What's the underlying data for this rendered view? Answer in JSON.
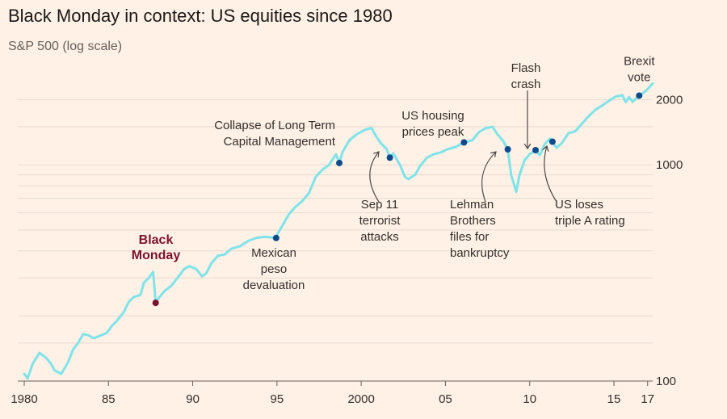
{
  "chart_data": {
    "type": "line",
    "title": "Black Monday in context: US equities since 1980",
    "subtitle": "S&P 500 (log scale)",
    "xlim": [
      1980,
      2017.3
    ],
    "ylim": [
      100,
      2450
    ],
    "yscale": "log",
    "grid": true,
    "x_ticks": [
      {
        "value": 1980,
        "label": "1980"
      },
      {
        "value": 1985,
        "label": "85"
      },
      {
        "value": 1990,
        "label": "90"
      },
      {
        "value": 1995,
        "label": "95"
      },
      {
        "value": 2000,
        "label": "2000"
      },
      {
        "value": 2005,
        "label": "05"
      },
      {
        "value": 2010,
        "label": "10"
      },
      {
        "value": 2015,
        "label": "15"
      },
      {
        "value": 2017,
        "label": "17"
      }
    ],
    "y_ticks": [
      {
        "value": 100,
        "label": "100"
      },
      {
        "value": 1000,
        "label": "1000"
      },
      {
        "value": 2000,
        "label": "2000"
      }
    ],
    "y_gridlines": [
      100,
      150,
      200,
      300,
      400,
      500,
      600,
      700,
      800,
      900,
      1000,
      1500,
      2000
    ],
    "series": [
      {
        "x": [
          1980.0,
          1980.2,
          1980.5,
          1980.9,
          1981.3,
          1981.6,
          1981.8,
          1982.2,
          1982.6,
          1982.9,
          1983.2,
          1983.5,
          1983.8,
          1984.1,
          1984.5,
          1984.9,
          1985.2,
          1985.5,
          1985.9,
          1986.2,
          1986.5,
          1986.9,
          1987.1,
          1987.4,
          1987.65,
          1987.8,
          1987.95,
          1988.3,
          1988.7,
          1989.1,
          1989.5,
          1989.8,
          1990.2,
          1990.55,
          1990.8,
          1991.1,
          1991.5,
          1991.9,
          1992.3,
          1992.8,
          1993.3,
          1993.8,
          1994.3,
          1994.9,
          1995.3,
          1995.7,
          1996.1,
          1996.5,
          1996.9,
          1997.3,
          1997.7,
          1998.1,
          1998.5,
          1998.7,
          1998.9,
          1999.3,
          1999.7,
          2000.2,
          2000.6,
          2000.9,
          2001.2,
          2001.5,
          2001.7,
          2001.9,
          2002.3,
          2002.6,
          2002.8,
          2003.2,
          2003.5,
          2003.9,
          2004.3,
          2004.7,
          2005.1,
          2005.6,
          2006.1,
          2006.6,
          2007.0,
          2007.4,
          2007.8,
          2008.1,
          2008.4,
          2008.7,
          2008.9,
          2009.2,
          2009.4,
          2009.7,
          2010.0,
          2010.35,
          2010.6,
          2010.9,
          2011.2,
          2011.35,
          2011.6,
          2011.9,
          2012.3,
          2012.7,
          2013.1,
          2013.5,
          2013.9,
          2014.3,
          2014.7,
          2015.1,
          2015.5,
          2015.7,
          2015.9,
          2016.1,
          2016.5,
          2016.9,
          2017.3
        ],
        "y": [
          108,
          103,
          120,
          135,
          128,
          120,
          112,
          108,
          122,
          140,
          150,
          165,
          163,
          158,
          162,
          167,
          180,
          190,
          208,
          232,
          245,
          250,
          285,
          300,
          320,
          230,
          240,
          260,
          275,
          300,
          330,
          340,
          330,
          305,
          315,
          350,
          380,
          385,
          410,
          420,
          445,
          460,
          465,
          459,
          520,
          590,
          640,
          680,
          740,
          880,
          950,
          1000,
          1120,
          1020,
          1150,
          1300,
          1380,
          1450,
          1480,
          1350,
          1250,
          1190,
          1080,
          1130,
          1000,
          880,
          860,
          900,
          990,
          1080,
          1120,
          1140,
          1180,
          1210,
          1270,
          1300,
          1420,
          1480,
          1500,
          1380,
          1300,
          1180,
          900,
          750,
          900,
          1050,
          1120,
          1170,
          1110,
          1250,
          1320,
          1280,
          1200,
          1260,
          1400,
          1430,
          1550,
          1680,
          1800,
          1880,
          1980,
          2070,
          2100,
          1950,
          2060,
          1960,
          2090,
          2200,
          2380
        ]
      }
    ],
    "events": [
      {
        "x": 1987.8,
        "y": 230,
        "label": [
          "Black",
          "Monday"
        ],
        "highlight": true
      },
      {
        "x": 1994.95,
        "y": 459,
        "label": [
          "Mexican",
          "peso",
          "devaluation"
        ]
      },
      {
        "x": 1998.7,
        "y": 1020,
        "label": [
          "Collapse of Long Term",
          "Capital Management"
        ]
      },
      {
        "x": 2001.7,
        "y": 1080,
        "label": [
          "Sep 11",
          "terrorist",
          "attacks"
        ]
      },
      {
        "x": 2006.1,
        "y": 1270,
        "label": [
          "US housing",
          "prices peak"
        ]
      },
      {
        "x": 2008.7,
        "y": 1180,
        "label": [
          "Lehman",
          "Brothers",
          "files for",
          "bankruptcy"
        ]
      },
      {
        "x": 2010.35,
        "y": 1170,
        "label": [
          "Flash",
          "crash"
        ]
      },
      {
        "x": 2011.35,
        "y": 1280,
        "label": [
          "US loses",
          "triple A rating"
        ]
      },
      {
        "x": 2016.5,
        "y": 2090,
        "label": [
          "Brexit",
          "vote"
        ]
      }
    ]
  }
}
